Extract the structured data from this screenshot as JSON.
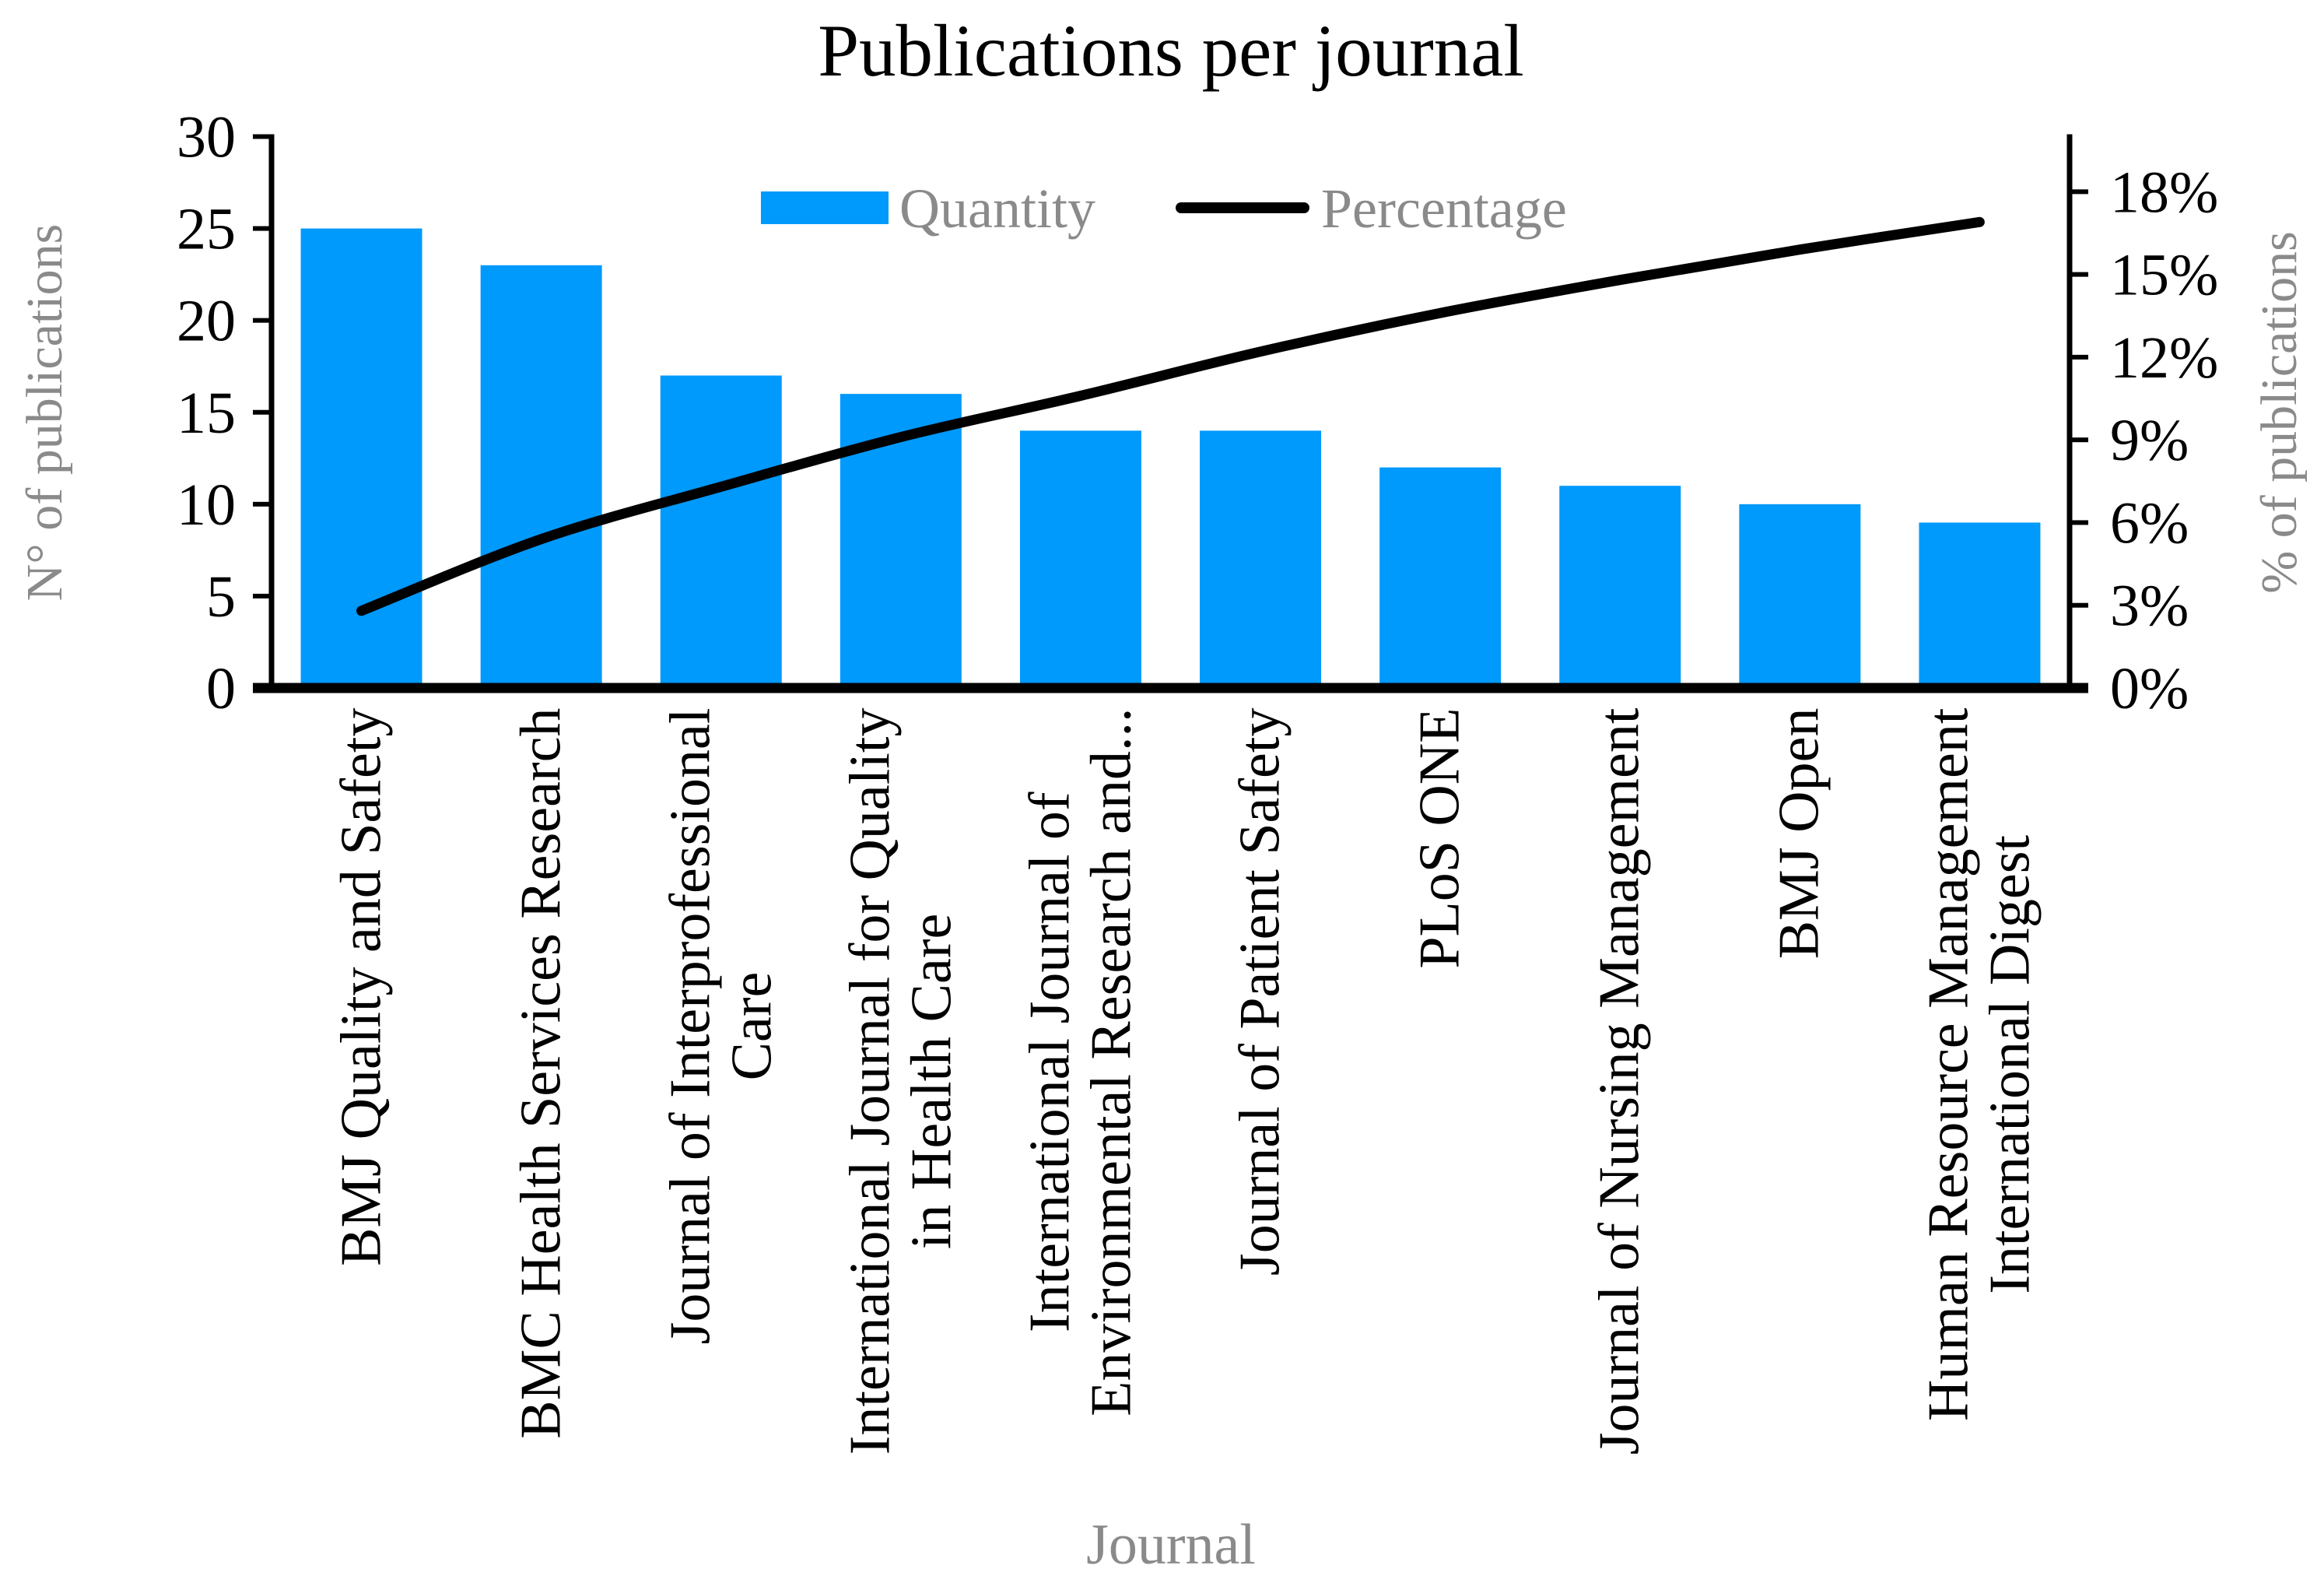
{
  "title": "Publications per journal",
  "legend": {
    "quantity_label": "Quantity",
    "percentage_label": "Percentage"
  },
  "axes": {
    "left_label": "N° of publications",
    "right_label": "% of publications",
    "x_label": "Journal",
    "left_ticks": [
      "0",
      "5",
      "10",
      "15",
      "20",
      "25",
      "30"
    ],
    "right_ticks": [
      "0%",
      "3%",
      "6%",
      "9%",
      "12%",
      "15%",
      "18%"
    ]
  },
  "colors": {
    "bar": "#0099FC",
    "line": "#000000",
    "gray_text": "#8a8a8a",
    "black_text": "#000000"
  },
  "chart_data": {
    "type": "bar",
    "subtype": "pareto (bar + cumulative percentage line)",
    "title": "Publications per journal",
    "xlabel": "Journal",
    "ylabel_left": "N° of publications",
    "ylabel_right": "% of publications",
    "grid": false,
    "legend_position": "top-center",
    "categories": [
      "BMJ Quality and Safety",
      "BMC Health Services Research",
      "Journal of Interprofessional Care",
      "International Journal for Quality in Health Care",
      "International Journal of Environmental Research and...",
      "Journal of Patient Safety",
      "PLoS ONE",
      "Journal of Nursing Management",
      "BMJ Open",
      "Human Resource Management International Digest"
    ],
    "categories_display": [
      [
        "BMJ Quality and Safety"
      ],
      [
        "BMC Health Services Research"
      ],
      [
        "Journal of Interprofessional",
        "Care"
      ],
      [
        "International Journal for Quality",
        "in Health Care"
      ],
      [
        "International Journal of",
        "Environmental Research and..."
      ],
      [
        "Journal of Patient Safety"
      ],
      [
        "PLoS ONE"
      ],
      [
        "Journal of Nursing Management"
      ],
      [
        "BMJ Open"
      ],
      [
        "Human Resource Management",
        "International Digest"
      ]
    ],
    "series": [
      {
        "name": "Quantity",
        "type": "bar",
        "axis": "left",
        "values": [
          25,
          23,
          17,
          16,
          14,
          14,
          12,
          11,
          10,
          9
        ]
      },
      {
        "name": "Percentage",
        "type": "line",
        "axis": "right",
        "values_pct": [
          2.8,
          5.4,
          7.3,
          9.1,
          10.6,
          12.2,
          13.6,
          14.8,
          15.9,
          16.9
        ]
      }
    ],
    "left_axis": {
      "min": 0,
      "max": 30,
      "tick_step": 5
    },
    "right_axis": {
      "min": 0,
      "max": 20,
      "tick_step": 3,
      "max_labeled_tick": 18,
      "format": "percent"
    }
  }
}
